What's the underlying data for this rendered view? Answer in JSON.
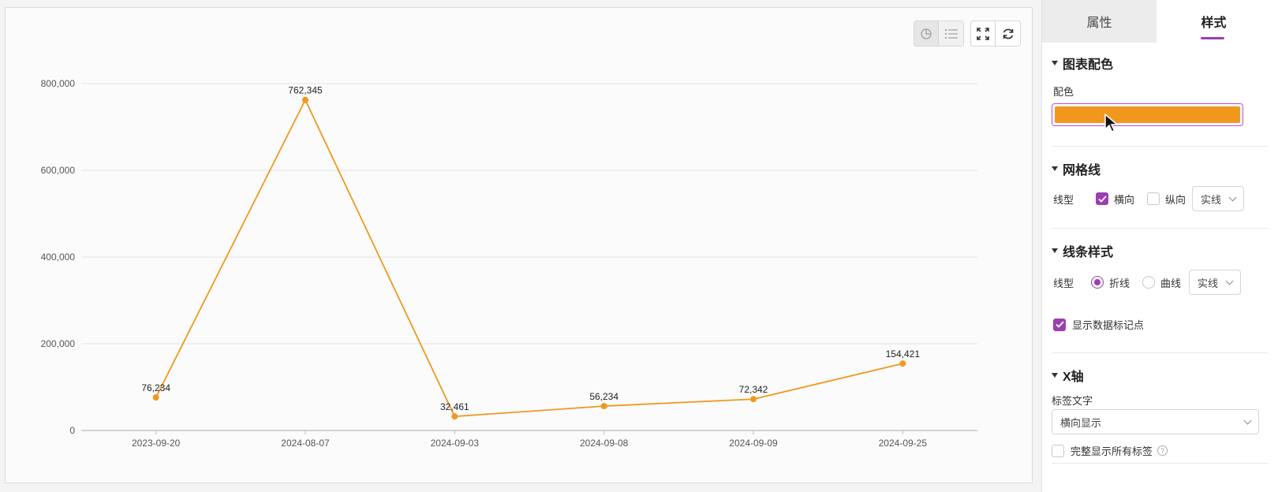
{
  "toolbar": {
    "icons": [
      "pie-chart-icon",
      "list-icon",
      "fullscreen-icon",
      "refresh-icon"
    ]
  },
  "chart_data": {
    "type": "line",
    "categories": [
      "2023-09-20",
      "2024-08-07",
      "2024-09-03",
      "2024-09-08",
      "2024-09-09",
      "2024-09-25"
    ],
    "values": [
      76234,
      762345,
      32461,
      56234,
      72342,
      154421
    ],
    "value_labels": [
      "76,234",
      "762,345",
      "32,461",
      "56,234",
      "72,342",
      "154,421"
    ],
    "yticks": [
      "0",
      "200,000",
      "400,000",
      "600,000",
      "800,000"
    ],
    "ylim": [
      0,
      800000
    ],
    "grid": "horizontal",
    "color": "#f0981e",
    "markers": true
  },
  "panel": {
    "tabs": [
      {
        "label": "属性"
      },
      {
        "label": "样式"
      }
    ],
    "color_section": {
      "title": "图表配色",
      "field_label": "配色",
      "swatch_color": "#f0981e"
    },
    "grid_section": {
      "title": "网格线",
      "line_type_label": "线型",
      "horizontal_label": "横向",
      "vertical_label": "纵向",
      "style_value": "实线"
    },
    "line_section": {
      "title": "线条样式",
      "line_type_label": "线型",
      "polyline_label": "折线",
      "curve_label": "曲线",
      "style_value": "实线",
      "show_markers_label": "显示数据标记点"
    },
    "xaxis_section": {
      "title": "X轴",
      "label_text_label": "标签文字",
      "label_text_value": "横向显示",
      "show_all_labels": "完整显示所有标签"
    }
  }
}
